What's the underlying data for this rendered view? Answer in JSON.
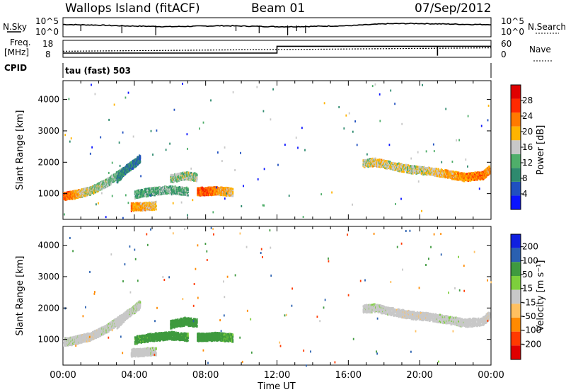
{
  "header": {
    "station": "Wallops Island (fitACF)",
    "beam": "Beam 01",
    "date": "07/Sep/2012"
  },
  "params": {
    "nsky_label": "N.Sky",
    "nsearch_label": "N.Search",
    "freq_label_1": "Freq.",
    "freq_label_2": "[MHz]",
    "nave_label": "Nave",
    "cpid_label": "CPID",
    "cpid_value": "tau (fast) 503",
    "noise_ticks_left": [
      "10^5",
      "10^0"
    ],
    "noise_ticks_right": [
      "10^5",
      "10^0"
    ],
    "freq_ticks_left": [
      "18",
      "8"
    ],
    "freq_ticks_right": [
      "60",
      "0"
    ]
  },
  "panels": {
    "ylabel": "Slant Range [km]",
    "xlabel": "Time UT",
    "power_bar_label": "Power [dB]",
    "velocity_bar_label": "Velocity [m s⁻¹]"
  },
  "colors": {
    "power_scale": [
      "#0a14ff",
      "#2050c0",
      "#2e8a6e",
      "#4fae6a",
      "#c8c8c8",
      "#ffb400",
      "#ff7a00",
      "#ff2a00",
      "#e00000"
    ],
    "velocity_scale": [
      "#e00000",
      "#ff3a00",
      "#ff8a00",
      "#ffc060",
      "#c8c8c8",
      "#7dcf3c",
      "#3f9a3f",
      "#2a60b0",
      "#1020e0"
    ]
  },
  "chart_data": [
    {
      "type": "line",
      "title": "N.Sky / N.Search",
      "x_range_hours": [
        0,
        24
      ],
      "series": [
        {
          "name": "N.Sky",
          "x": [
            0,
            1,
            2,
            3,
            4,
            5,
            6,
            7,
            8,
            9,
            10,
            11,
            12,
            13,
            14,
            15,
            16,
            17,
            18,
            19,
            20,
            21,
            22,
            23,
            24
          ],
          "y": [
            3.5,
            3.4,
            3.3,
            3.1,
            3.0,
            2.9,
            2.8,
            2.9,
            3.0,
            3.1,
            3.0,
            2.9,
            2.8,
            2.8,
            2.9,
            3.0,
            3.1,
            3.4,
            3.7,
            3.8,
            3.8,
            3.7,
            3.6,
            3.5,
            3.5
          ]
        },
        {
          "name": "N.Search",
          "x": [
            0,
            24
          ],
          "y": [
            0,
            0
          ]
        }
      ]
    },
    {
      "type": "line",
      "title": "Freq. / Nave",
      "series": [
        {
          "name": "Freq.",
          "x": [
            0,
            12,
            12,
            24
          ],
          "y": [
            10.5,
            10.5,
            14.5,
            14.5
          ]
        },
        {
          "name": "Nave",
          "x": [
            0,
            24
          ],
          "y": [
            12,
            14
          ]
        }
      ]
    },
    {
      "type": "heatmap",
      "title": "Power",
      "xlabel": "Time UT",
      "ylabel": "Slant Range [km]",
      "x_ticks": [
        "00:00",
        "04:00",
        "08:00",
        "12:00",
        "16:00",
        "20:00",
        "00:00"
      ],
      "x_tick_values": [
        0,
        4,
        8,
        12,
        16,
        20,
        24
      ],
      "y_ticks": [
        1000,
        2000,
        3000,
        4000
      ],
      "ylim": [
        180,
        4600
      ],
      "xlim": [
        0,
        24
      ],
      "colorbar": {
        "label": "Power [dB]",
        "ticks": [
          4,
          8,
          12,
          16,
          20,
          24,
          28
        ],
        "range": [
          0,
          32
        ]
      },
      "bands": [
        {
          "x": [
            0.0,
            0.5,
            1.0,
            1.5,
            2.0,
            2.5,
            3.0,
            3.4
          ],
          "y": [
            950,
            980,
            1050,
            1120,
            1250,
            1400,
            1600,
            1750
          ],
          "value": [
            26,
            22,
            18,
            16,
            15,
            14,
            13,
            12
          ]
        },
        {
          "x": [
            3.0,
            3.5,
            4.0,
            4.3
          ],
          "y": [
            1500,
            1800,
            2000,
            2150
          ],
          "value": [
            10,
            9,
            8,
            8
          ]
        },
        {
          "x": [
            4.0,
            5.0,
            6.0,
            7.0
          ],
          "y": [
            1000,
            1100,
            1150,
            1100
          ],
          "value": [
            12,
            12,
            13,
            12
          ]
        },
        {
          "x": [
            3.8,
            4.5,
            5.2
          ],
          "y": [
            600,
            620,
            650
          ],
          "value": [
            22,
            20,
            18
          ]
        },
        {
          "x": [
            6.0,
            6.8,
            7.5
          ],
          "y": [
            1500,
            1600,
            1550
          ],
          "value": [
            14,
            15,
            14
          ]
        },
        {
          "x": [
            7.5,
            8.0,
            8.5,
            9.0,
            9.5
          ],
          "y": [
            1100,
            1100,
            1120,
            1100,
            1080
          ],
          "value": [
            24,
            26,
            22,
            20,
            18
          ]
        },
        {
          "x": [
            16.8,
            17.5,
            18.5,
            19.5,
            20.5,
            21.5,
            22.5,
            23.5,
            23.9
          ],
          "y": [
            2000,
            2030,
            1900,
            1800,
            1750,
            1650,
            1550,
            1600,
            1800
          ],
          "value": [
            16,
            18,
            17,
            16,
            17,
            20,
            22,
            24,
            20
          ]
        }
      ]
    },
    {
      "type": "heatmap",
      "title": "Velocity",
      "xlabel": "Time UT",
      "ylabel": "Slant Range [km]",
      "x_ticks": [
        "00:00",
        "04:00",
        "08:00",
        "12:00",
        "16:00",
        "20:00",
        "00:00"
      ],
      "x_tick_values": [
        0,
        4,
        8,
        12,
        16,
        20,
        24
      ],
      "y_ticks": [
        1000,
        2000,
        3000,
        4000
      ],
      "ylim": [
        180,
        4600
      ],
      "xlim": [
        0,
        24
      ],
      "colorbar": {
        "label": "Velocity [m s⁻¹]",
        "ticks": [
          "200",
          "100",
          "50",
          "15",
          "-15",
          "-50",
          "-100",
          "-200"
        ],
        "range": [
          -250,
          250
        ]
      },
      "bands": [
        {
          "x": [
            0.0,
            0.5,
            1.0,
            1.5,
            2.0,
            2.5,
            3.0,
            3.4
          ],
          "y": [
            950,
            980,
            1050,
            1120,
            1250,
            1400,
            1600,
            1750
          ],
          "value": [
            0,
            5,
            0,
            -5,
            0,
            5,
            0,
            0
          ]
        },
        {
          "x": [
            3.0,
            3.5,
            4.0,
            4.3
          ],
          "y": [
            1500,
            1800,
            2000,
            2150
          ],
          "value": [
            0,
            0,
            10,
            0
          ]
        },
        {
          "x": [
            4.0,
            5.0,
            6.0,
            7.0
          ],
          "y": [
            1000,
            1100,
            1150,
            1100
          ],
          "value": [
            40,
            45,
            50,
            40
          ]
        },
        {
          "x": [
            3.8,
            4.5,
            5.2
          ],
          "y": [
            600,
            620,
            650
          ],
          "value": [
            0,
            0,
            5
          ]
        },
        {
          "x": [
            6.0,
            6.8,
            7.5
          ],
          "y": [
            1500,
            1600,
            1550
          ],
          "value": [
            50,
            60,
            45
          ]
        },
        {
          "x": [
            7.5,
            8.0,
            8.5,
            9.0,
            9.5
          ],
          "y": [
            1100,
            1100,
            1120,
            1100,
            1080
          ],
          "value": [
            45,
            55,
            50,
            40,
            35
          ]
        },
        {
          "x": [
            16.8,
            17.5,
            18.5,
            19.5,
            20.5,
            21.5,
            22.5,
            23.5,
            23.9
          ],
          "y": [
            2000,
            2030,
            1900,
            1800,
            1750,
            1650,
            1550,
            1600,
            1800
          ],
          "value": [
            0,
            5,
            0,
            -5,
            0,
            5,
            0,
            0,
            -5
          ]
        }
      ]
    }
  ]
}
